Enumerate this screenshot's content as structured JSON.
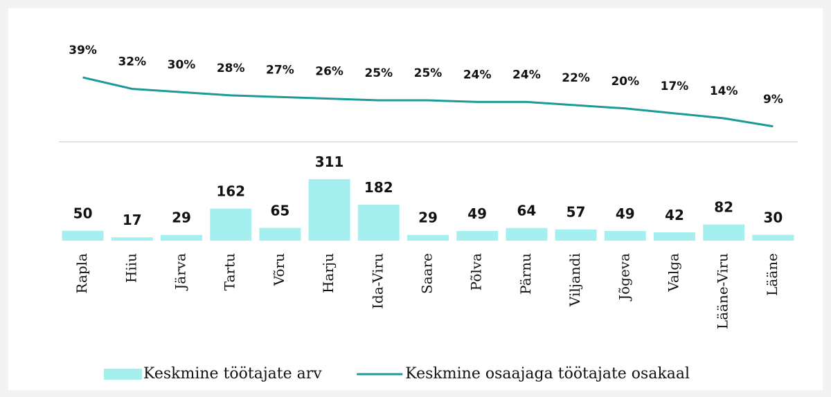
{
  "chart_data": {
    "type": "bar",
    "categories": [
      "Rapla",
      "Hiiu",
      "Järva",
      "Tartu",
      "Võru",
      "Harju",
      "Ida-Viru",
      "Saare",
      "Põlva",
      "Pärnu",
      "Viljandi",
      "Jõgeva",
      "Valga",
      "Lääne-Viru",
      "Lääne"
    ],
    "series": [
      {
        "name": "Keskmine töötajate arv",
        "color": "#a6efef",
        "type": "bar",
        "values": [
          50,
          17,
          29,
          162,
          65,
          311,
          182,
          29,
          49,
          64,
          57,
          49,
          42,
          82,
          30
        ]
      },
      {
        "name": "Keskmine osaajaga töötajate osakaal",
        "color": "#1b9a96",
        "type": "line",
        "axis": "y2",
        "values": [
          39,
          32,
          30,
          28,
          27,
          26,
          25,
          25,
          24,
          24,
          22,
          20,
          17,
          14,
          9
        ],
        "value_labels": [
          "39%",
          "32%",
          "30%",
          "28%",
          "27%",
          "26%",
          "25%",
          "25%",
          "24%",
          "24%",
          "22%",
          "20%",
          "17%",
          "14%",
          "9%"
        ]
      }
    ],
    "ylim": [
      0,
      500
    ],
    "y2lim": [
      0,
      50
    ],
    "legend": "bottom"
  }
}
